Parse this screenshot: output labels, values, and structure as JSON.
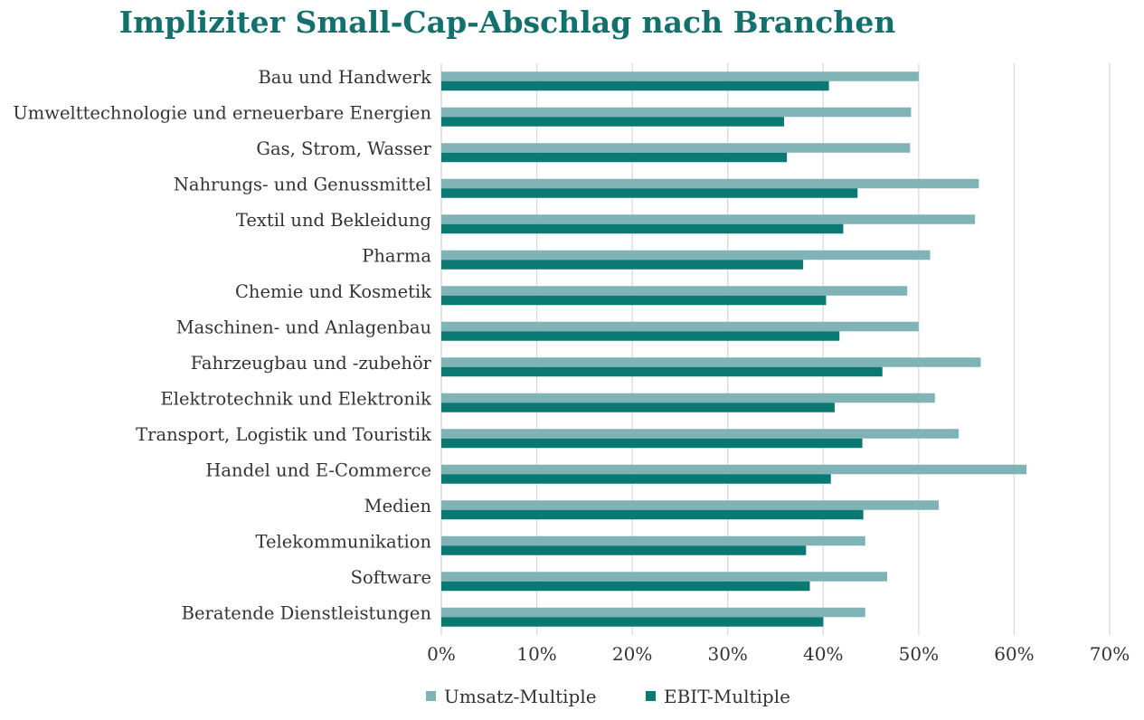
{
  "colors": {
    "title": "#12706d",
    "umsatz": "#7fb3b5",
    "ebit": "#0a7873",
    "grid": "#d9d9d9",
    "text": "#333333"
  },
  "chart_data": {
    "type": "bar",
    "orientation": "horizontal",
    "title": "Impliziter Small-Cap-Abschlag nach Branchen",
    "categories": [
      "Bau und Handwerk",
      "Umwelttechnologie und erneuerbare Energien",
      "Gas, Strom, Wasser",
      "Nahrungs- und Genussmittel",
      "Textil und Bekleidung",
      "Pharma",
      "Chemie und Kosmetik",
      "Maschinen- und Anlagenbau",
      "Fahrzeugbau und -zubehör",
      "Elektrotechnik und Elektronik",
      "Transport, Logistik und Touristik",
      "Handel und E-Commerce",
      "Medien",
      "Telekommunikation",
      "Software",
      "Beratende Dienstleistungen"
    ],
    "series": [
      {
        "name": "Umsatz-Multiple",
        "color": "#7fb3b5",
        "values": [
          50.0,
          49.2,
          49.1,
          56.3,
          55.9,
          51.2,
          48.8,
          50.0,
          56.5,
          51.7,
          54.2,
          61.3,
          52.1,
          44.4,
          46.7,
          44.4
        ]
      },
      {
        "name": "EBIT-Multiple",
        "color": "#0a7873",
        "values": [
          40.6,
          35.9,
          36.2,
          43.6,
          42.1,
          37.9,
          40.3,
          41.7,
          46.2,
          41.2,
          44.1,
          40.8,
          44.2,
          38.2,
          38.6,
          40.0
        ]
      }
    ],
    "xlim": [
      0,
      70
    ],
    "xticks": [
      "0%",
      "10%",
      "20%",
      "30%",
      "40%",
      "50%",
      "60%",
      "70%"
    ],
    "xtick_values": [
      0,
      10,
      20,
      30,
      40,
      50,
      60,
      70
    ],
    "grid": true,
    "legend": "bottom"
  }
}
